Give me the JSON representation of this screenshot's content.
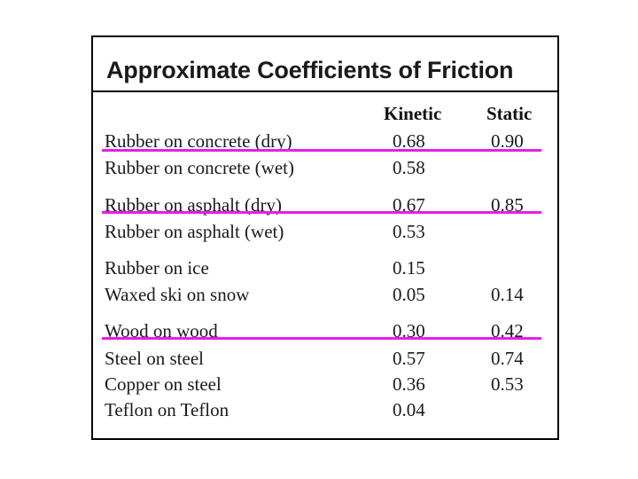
{
  "table": {
    "title": "Approximate Coefficients of Friction",
    "headers": {
      "kinetic": "Kinetic",
      "static": "Static"
    },
    "rows": [
      {
        "material": "Rubber on concrete (dry)",
        "kinetic": "0.68",
        "static": "0.90"
      },
      {
        "material": "Rubber on concrete (wet)",
        "kinetic": "0.58",
        "static": ""
      },
      {
        "material": "Rubber on asphalt (dry)",
        "kinetic": "0.67",
        "static": "0.85"
      },
      {
        "material": "Rubber on asphalt (wet)",
        "kinetic": "0.53",
        "static": ""
      },
      {
        "material": "Rubber on ice",
        "kinetic": "0.15",
        "static": ""
      },
      {
        "material": "Waxed ski on snow",
        "kinetic": "0.05",
        "static": "0.14"
      },
      {
        "material": "Wood on wood",
        "kinetic": "0.30",
        "static": "0.42"
      },
      {
        "material": "Steel on steel",
        "kinetic": "0.57",
        "static": "0.74"
      },
      {
        "material": "Copper on steel",
        "kinetic": "0.36",
        "static": "0.53"
      },
      {
        "material": "Teflon on Teflon",
        "kinetic": "0.04",
        "static": ""
      }
    ]
  },
  "annotations": {
    "underline_color": "#e61ee6",
    "underlined_rows": [
      "Rubber on concrete (dry)",
      "Rubber on asphalt (dry)",
      "Wood on wood"
    ]
  }
}
